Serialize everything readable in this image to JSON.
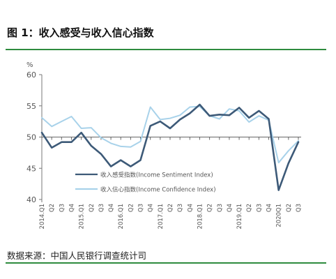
{
  "figure": {
    "title": "图 1：收入感受与收入信心指数",
    "source": "数据来源：中国人民银行调查统计司"
  },
  "chart_data": {
    "type": "line",
    "ylabel": "%",
    "ylim": [
      40,
      60
    ],
    "yticks": [
      40,
      45,
      50,
      55,
      60
    ],
    "x": [
      "2014.Q1",
      "Q2",
      "Q3",
      "Q4",
      "2015.Q1",
      "Q2",
      "Q3",
      "Q4",
      "2016.Q1",
      "Q2",
      "Q3",
      "Q4",
      "2017.Q1",
      "Q2",
      "Q3",
      "Q4",
      "2018.Q1",
      "Q2",
      "Q3",
      "Q4",
      "2019.Q1",
      "Q2",
      "Q3",
      "Q4",
      "2020Q1",
      "Q2",
      "Q3"
    ],
    "grid": false,
    "legend": "center-left",
    "series": [
      {
        "name": "收入感受指数(Income Sentiment Index)",
        "color": "#3d5a78",
        "values": [
          50.7,
          48.3,
          49.2,
          49.2,
          50.7,
          48.6,
          47.3,
          45.3,
          46.3,
          45.3,
          46.3,
          51.8,
          52.5,
          51.4,
          52.8,
          53.8,
          55.2,
          53.4,
          53.6,
          53.5,
          54.7,
          53.1,
          54.2,
          52.9,
          41.5,
          45.8,
          49.2
        ]
      },
      {
        "name": "收入信心指数(Income Confidence Index)",
        "color": "#a8d2ea",
        "values": [
          53.1,
          51.7,
          52.5,
          53.3,
          51.4,
          51.5,
          49.9,
          49.0,
          48.5,
          48.4,
          49.3,
          54.8,
          52.8,
          53.0,
          53.5,
          54.8,
          54.9,
          53.4,
          52.9,
          54.5,
          54.2,
          52.4,
          53.4,
          52.7,
          45.9,
          47.8,
          49.4
        ]
      }
    ]
  }
}
